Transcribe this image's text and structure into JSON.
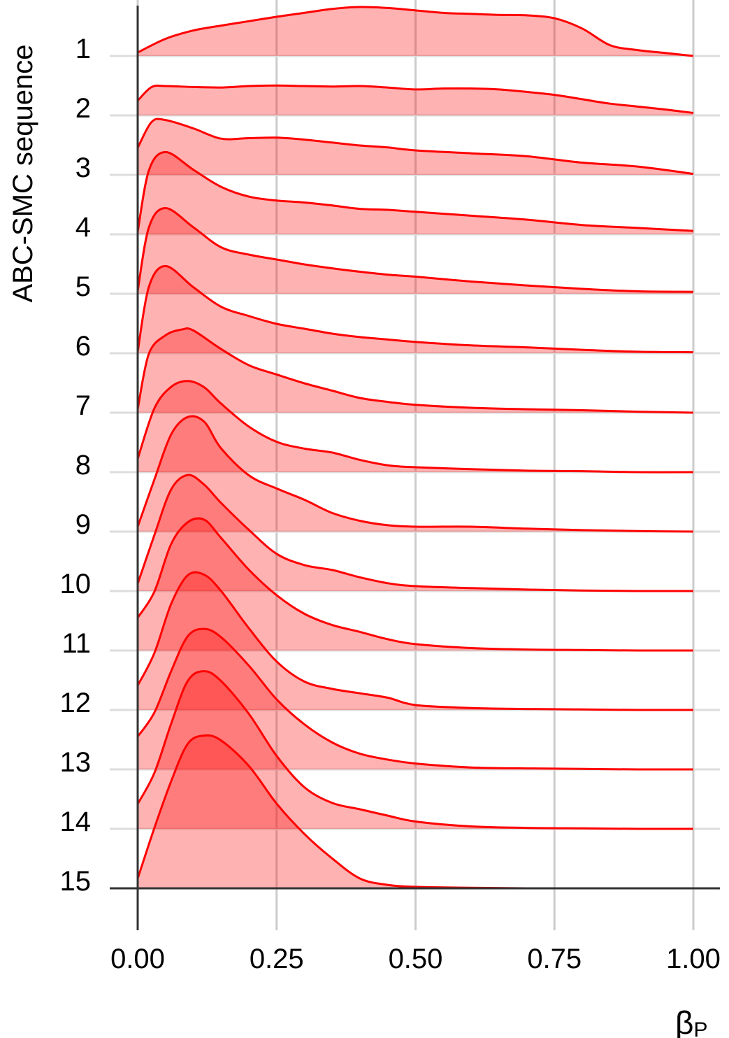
{
  "chart_data": {
    "type": "ridgeline",
    "ylabel": "ABC-SMC sequence",
    "xlabel": "β",
    "xlabel_subscript": "P",
    "xlim": [
      0,
      1
    ],
    "x_ticks": [
      0,
      0.25,
      0.5,
      0.75,
      1
    ],
    "x_tick_labels": [
      "0.00",
      "0.25",
      "0.50",
      "0.75",
      "1.00"
    ],
    "categories": [
      "1",
      "2",
      "3",
      "4",
      "5",
      "6",
      "7",
      "8",
      "9",
      "10",
      "11",
      "12",
      "13",
      "14",
      "15"
    ],
    "grid": true,
    "colors": {
      "line": "#ff0000",
      "fill": "#ff0000",
      "grid": "#cccccc",
      "axis": "#333333"
    },
    "series": [
      {
        "name": "1",
        "x": [
          0,
          0.05,
          0.1,
          0.15,
          0.2,
          0.25,
          0.3,
          0.35,
          0.4,
          0.45,
          0.5,
          0.55,
          0.6,
          0.65,
          0.7,
          0.75,
          0.8,
          0.85,
          0.9,
          0.95,
          1
        ],
        "y": [
          0.07,
          0.35,
          0.52,
          0.62,
          0.71,
          0.8,
          0.88,
          0.96,
          1.0,
          0.98,
          0.93,
          0.88,
          0.86,
          0.84,
          0.83,
          0.77,
          0.56,
          0.22,
          0.12,
          0.06,
          0.0
        ]
      },
      {
        "name": "2",
        "x": [
          0,
          0.025,
          0.05,
          0.1,
          0.15,
          0.2,
          0.25,
          0.3,
          0.35,
          0.4,
          0.45,
          0.5,
          0.55,
          0.6,
          0.65,
          0.7,
          0.75,
          0.8,
          0.85,
          0.9,
          0.95,
          1
        ],
        "y": [
          0.3,
          0.58,
          0.6,
          0.58,
          0.57,
          0.6,
          0.61,
          0.6,
          0.59,
          0.6,
          0.57,
          0.53,
          0.55,
          0.55,
          0.53,
          0.48,
          0.42,
          0.33,
          0.24,
          0.18,
          0.12,
          0.05
        ]
      },
      {
        "name": "3",
        "x": [
          0,
          0.025,
          0.05,
          0.1,
          0.15,
          0.2,
          0.25,
          0.3,
          0.35,
          0.4,
          0.45,
          0.5,
          0.6,
          0.7,
          0.8,
          0.9,
          1
        ],
        "y": [
          0.55,
          1.08,
          1.12,
          0.95,
          0.74,
          0.75,
          0.76,
          0.72,
          0.66,
          0.6,
          0.56,
          0.5,
          0.44,
          0.38,
          0.25,
          0.17,
          0.02
        ]
      },
      {
        "name": "4",
        "x": [
          0,
          0.02,
          0.05,
          0.1,
          0.15,
          0.2,
          0.25,
          0.3,
          0.35,
          0.4,
          0.45,
          0.5,
          0.6,
          0.7,
          0.8,
          0.9,
          1
        ],
        "y": [
          0.05,
          1.3,
          1.68,
          1.32,
          0.97,
          0.77,
          0.69,
          0.65,
          0.59,
          0.52,
          0.5,
          0.46,
          0.38,
          0.3,
          0.19,
          0.13,
          0.07
        ]
      },
      {
        "name": "5",
        "x": [
          0,
          0.02,
          0.05,
          0.1,
          0.15,
          0.2,
          0.25,
          0.3,
          0.35,
          0.4,
          0.45,
          0.5,
          0.6,
          0.7,
          0.8,
          0.9,
          1
        ],
        "y": [
          0.06,
          1.35,
          1.75,
          1.36,
          0.95,
          0.8,
          0.7,
          0.6,
          0.52,
          0.45,
          0.39,
          0.35,
          0.25,
          0.17,
          0.1,
          0.05,
          0.04
        ]
      },
      {
        "name": "6",
        "x": [
          0,
          0.02,
          0.05,
          0.1,
          0.15,
          0.2,
          0.25,
          0.3,
          0.35,
          0.4,
          0.45,
          0.5,
          0.6,
          0.7,
          0.8,
          0.9,
          1
        ],
        "y": [
          0.03,
          1.35,
          1.78,
          1.35,
          0.95,
          0.76,
          0.6,
          0.5,
          0.4,
          0.33,
          0.28,
          0.23,
          0.16,
          0.12,
          0.07,
          0.03,
          0.02
        ]
      },
      {
        "name": "7",
        "x": [
          0,
          0.02,
          0.05,
          0.08,
          0.1,
          0.15,
          0.2,
          0.25,
          0.3,
          0.35,
          0.4,
          0.45,
          0.5,
          0.6,
          0.7,
          0.8,
          0.9,
          1
        ],
        "y": [
          0.07,
          1.2,
          1.58,
          1.7,
          1.68,
          1.3,
          0.97,
          0.78,
          0.6,
          0.45,
          0.3,
          0.22,
          0.16,
          0.1,
          0.07,
          0.05,
          0.02,
          0.0
        ]
      },
      {
        "name": "8",
        "x": [
          0,
          0.03,
          0.06,
          0.09,
          0.12,
          0.15,
          0.2,
          0.25,
          0.3,
          0.35,
          0.4,
          0.45,
          0.5,
          0.6,
          0.7,
          0.8,
          0.9,
          1
        ],
        "y": [
          0.27,
          1.3,
          1.74,
          1.86,
          1.73,
          1.4,
          0.93,
          0.62,
          0.48,
          0.4,
          0.25,
          0.14,
          0.1,
          0.06,
          0.03,
          0.02,
          0.0,
          0.0
        ]
      },
      {
        "name": "9",
        "x": [
          0,
          0.03,
          0.06,
          0.09,
          0.12,
          0.15,
          0.2,
          0.25,
          0.3,
          0.35,
          0.4,
          0.45,
          0.5,
          0.6,
          0.7,
          0.8,
          0.9,
          1
        ],
        "y": [
          0.1,
          1.06,
          1.98,
          2.34,
          2.24,
          1.7,
          1.15,
          0.88,
          0.65,
          0.38,
          0.22,
          0.13,
          0.1,
          0.1,
          0.06,
          0.03,
          0.01,
          0.0
        ]
      },
      {
        "name": "10",
        "x": [
          0,
          0.03,
          0.06,
          0.09,
          0.12,
          0.15,
          0.2,
          0.25,
          0.3,
          0.35,
          0.4,
          0.45,
          0.5,
          0.6,
          0.7,
          0.8,
          0.9,
          1
        ],
        "y": [
          0.15,
          1.14,
          2.07,
          2.37,
          2.17,
          1.8,
          1.25,
          0.76,
          0.53,
          0.43,
          0.28,
          0.16,
          0.1,
          0.06,
          0.03,
          0.01,
          0.0,
          0.0
        ]
      },
      {
        "name": "11",
        "x": [
          0,
          0.03,
          0.06,
          0.09,
          0.12,
          0.15,
          0.2,
          0.25,
          0.3,
          0.35,
          0.4,
          0.45,
          0.5,
          0.6,
          0.7,
          0.8,
          0.9,
          1
        ],
        "y": [
          0.67,
          1.2,
          2.17,
          2.62,
          2.67,
          2.3,
          1.65,
          1.13,
          0.75,
          0.52,
          0.38,
          0.23,
          0.13,
          0.05,
          0.02,
          0.01,
          0.0,
          0.0
        ]
      },
      {
        "name": "12",
        "x": [
          0,
          0.03,
          0.06,
          0.09,
          0.12,
          0.15,
          0.2,
          0.25,
          0.3,
          0.35,
          0.4,
          0.45,
          0.5,
          0.6,
          0.7,
          0.8,
          0.9,
          1
        ],
        "y": [
          0.5,
          1.16,
          2.16,
          2.75,
          2.76,
          2.43,
          1.67,
          0.99,
          0.58,
          0.43,
          0.34,
          0.25,
          0.1,
          0.04,
          0.02,
          0.01,
          0.0,
          0.0
        ]
      },
      {
        "name": "13",
        "x": [
          0,
          0.03,
          0.06,
          0.09,
          0.12,
          0.15,
          0.2,
          0.25,
          0.3,
          0.35,
          0.4,
          0.45,
          0.5,
          0.6,
          0.7,
          0.8,
          0.9,
          1
        ],
        "y": [
          0.67,
          1.16,
          2.0,
          2.72,
          2.87,
          2.7,
          2.12,
          1.43,
          0.92,
          0.55,
          0.32,
          0.2,
          0.12,
          0.04,
          0.02,
          0.01,
          0.0,
          0.0
        ]
      },
      {
        "name": "14",
        "x": [
          0,
          0.03,
          0.06,
          0.09,
          0.12,
          0.15,
          0.2,
          0.25,
          0.3,
          0.35,
          0.4,
          0.45,
          0.5,
          0.6,
          0.7,
          0.8,
          0.9,
          1
        ],
        "y": [
          0.51,
          1.14,
          2.14,
          3.02,
          3.22,
          3.02,
          2.35,
          1.49,
          0.85,
          0.53,
          0.4,
          0.27,
          0.15,
          0.05,
          0.02,
          0.01,
          0.0,
          0.0
        ]
      },
      {
        "name": "15",
        "x": [
          0,
          0.03,
          0.06,
          0.09,
          0.12,
          0.15,
          0.2,
          0.25,
          0.3,
          0.35,
          0.4,
          0.45,
          0.5,
          0.6,
          0.7,
          0.8,
          0.9,
          1
        ],
        "y": [
          0.2,
          1.23,
          2.18,
          2.95,
          3.12,
          3.02,
          2.5,
          1.73,
          1.11,
          0.61,
          0.2,
          0.07,
          0.03,
          0.01,
          0.0,
          0.0,
          0.0,
          0.0
        ]
      }
    ]
  }
}
